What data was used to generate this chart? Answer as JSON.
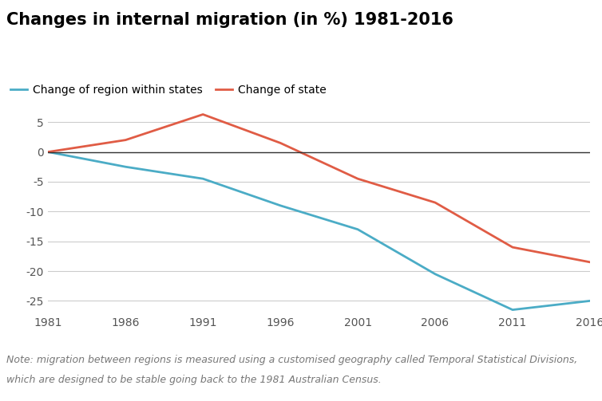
{
  "title": "Changes in internal migration (in %) 1981-2016",
  "x_years": [
    1981,
    1986,
    1991,
    1996,
    2001,
    2006,
    2011,
    2016
  ],
  "region_within_states": [
    0,
    -2.5,
    -4.5,
    -9.0,
    -13.0,
    -20.5,
    -26.5,
    -25.0
  ],
  "change_of_state": [
    0,
    2.0,
    6.3,
    1.5,
    -4.5,
    -8.5,
    -16.0,
    -18.5
  ],
  "region_color": "#4BACC6",
  "state_color": "#E05C45",
  "legend_region": "Change of region within states",
  "legend_state": "Change of state",
  "ylim": [
    -27,
    8
  ],
  "yticks": [
    -25,
    -20,
    -15,
    -10,
    -5,
    0,
    5
  ],
  "xticks": [
    1981,
    1986,
    1991,
    1996,
    2001,
    2006,
    2011,
    2016
  ],
  "note_line1": "Note: migration between regions is measured using a customised geography called Temporal Statistical Divisions,",
  "note_line2": "which are designed to be stable going back to the 1981 Australian Census.",
  "background_color": "#ffffff",
  "grid_color": "#cccccc",
  "zero_line_color": "#333333",
  "title_fontsize": 15,
  "legend_fontsize": 10,
  "tick_fontsize": 10,
  "note_fontsize": 9,
  "line_width": 2.0
}
